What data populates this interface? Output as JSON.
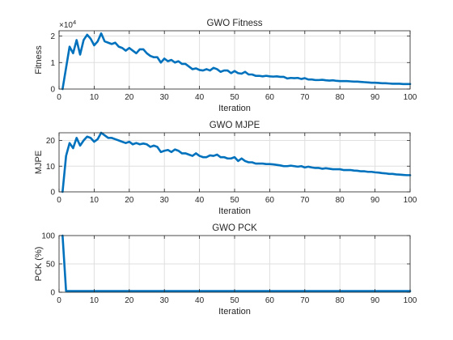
{
  "chart_data": [
    {
      "type": "line",
      "title": "GWO Fitness",
      "xlabel": "Iteration",
      "ylabel": "Fitness",
      "exponent_label": "×10",
      "exponent_power": "4",
      "xlim": [
        0,
        100
      ],
      "ylim": [
        0,
        22000
      ],
      "xticks": [
        0,
        10,
        20,
        30,
        40,
        50,
        60,
        70,
        80,
        90,
        100
      ],
      "yticks": [
        0,
        10000,
        20000
      ],
      "ytick_labels": [
        "0",
        "1",
        "2"
      ],
      "grid": true,
      "color": "#0072BD",
      "x": [
        1,
        2,
        3,
        4,
        5,
        6,
        7,
        8,
        9,
        10,
        11,
        12,
        13,
        14,
        15,
        16,
        17,
        18,
        19,
        20,
        21,
        22,
        23,
        24,
        25,
        26,
        27,
        28,
        29,
        30,
        31,
        32,
        33,
        34,
        35,
        36,
        37,
        38,
        39,
        40,
        41,
        42,
        43,
        44,
        45,
        46,
        47,
        48,
        49,
        50,
        51,
        52,
        53,
        54,
        55,
        56,
        57,
        58,
        59,
        60,
        61,
        62,
        63,
        64,
        65,
        66,
        67,
        68,
        69,
        70,
        71,
        72,
        73,
        74,
        75,
        76,
        77,
        78,
        79,
        80,
        81,
        82,
        83,
        84,
        85,
        86,
        87,
        88,
        89,
        90,
        91,
        92,
        93,
        94,
        95,
        96,
        97,
        98,
        99,
        100
      ],
      "values": [
        0,
        8000,
        16000,
        13500,
        18500,
        13000,
        18500,
        20500,
        19000,
        16500,
        18000,
        21000,
        18000,
        17500,
        17000,
        17500,
        16000,
        15500,
        14500,
        15500,
        14500,
        13500,
        15000,
        15000,
        13500,
        12500,
        12000,
        12000,
        10000,
        11500,
        10500,
        11000,
        10000,
        10500,
        9500,
        9500,
        8500,
        7500,
        7800,
        7200,
        7000,
        7500,
        7000,
        8000,
        7500,
        6500,
        7000,
        7000,
        6000,
        6800,
        6000,
        5800,
        6500,
        5500,
        5500,
        5000,
        5000,
        4800,
        5000,
        4800,
        4700,
        4800,
        4600,
        4600,
        4000,
        4200,
        4100,
        4200,
        3800,
        4100,
        3600,
        3600,
        3400,
        3400,
        3500,
        3300,
        3200,
        3300,
        3100,
        3000,
        3000,
        3000,
        2900,
        2800,
        2800,
        2700,
        2600,
        2500,
        2400,
        2400,
        2300,
        2200,
        2200,
        2100,
        2000,
        2000,
        2000,
        1900,
        1900,
        1900
      ]
    },
    {
      "type": "line",
      "title": "GWO MJPE",
      "xlabel": "Iteration",
      "ylabel": "MJPE",
      "xlim": [
        0,
        100
      ],
      "ylim": [
        0,
        23
      ],
      "xticks": [
        0,
        10,
        20,
        30,
        40,
        50,
        60,
        70,
        80,
        90,
        100
      ],
      "yticks": [
        0,
        10,
        20
      ],
      "ytick_labels": [
        "0",
        "10",
        "20"
      ],
      "grid": true,
      "color": "#0072BD",
      "x": [
        1,
        2,
        3,
        4,
        5,
        6,
        7,
        8,
        9,
        10,
        11,
        12,
        13,
        14,
        15,
        16,
        17,
        18,
        19,
        20,
        21,
        22,
        23,
        24,
        25,
        26,
        27,
        28,
        29,
        30,
        31,
        32,
        33,
        34,
        35,
        36,
        37,
        38,
        39,
        40,
        41,
        42,
        43,
        44,
        45,
        46,
        47,
        48,
        49,
        50,
        51,
        52,
        53,
        54,
        55,
        56,
        57,
        58,
        59,
        60,
        61,
        62,
        63,
        64,
        65,
        66,
        67,
        68,
        69,
        70,
        71,
        72,
        73,
        74,
        75,
        76,
        77,
        78,
        79,
        80,
        81,
        82,
        83,
        84,
        85,
        86,
        87,
        88,
        89,
        90,
        91,
        92,
        93,
        94,
        95,
        96,
        97,
        98,
        99,
        100
      ],
      "values": [
        0,
        14,
        19,
        17,
        21,
        18,
        20,
        21.5,
        21,
        19.5,
        20.5,
        23,
        22,
        21,
        21,
        20.5,
        20,
        19.5,
        19,
        19.5,
        18.5,
        19,
        18.5,
        18.8,
        18.5,
        17.5,
        18,
        17.5,
        15.5,
        16,
        16.3,
        15.5,
        16.5,
        16,
        15,
        15,
        14.5,
        14,
        15,
        14,
        13.5,
        13.5,
        14.2,
        14,
        14.5,
        13.5,
        13.5,
        13,
        13,
        13.5,
        12,
        13,
        12,
        11.5,
        11.5,
        11,
        11,
        11,
        10.8,
        10.8,
        10.7,
        10.5,
        10.3,
        10,
        10,
        10.2,
        10,
        9.8,
        10,
        9.5,
        9.8,
        9.5,
        9.3,
        9.3,
        9,
        9.2,
        9,
        8.8,
        8.8,
        8.8,
        8.5,
        8.5,
        8.5,
        8.3,
        8.2,
        8,
        8,
        7.8,
        7.8,
        7.6,
        7.5,
        7.3,
        7.2,
        7,
        7,
        6.8,
        6.7,
        6.6,
        6.5,
        6.5
      ]
    },
    {
      "type": "line",
      "title": "GWO PCK",
      "xlabel": "Iteration",
      "ylabel": "PCK (%)",
      "xlim": [
        0,
        100
      ],
      "ylim": [
        0,
        100
      ],
      "xticks": [
        0,
        10,
        20,
        30,
        40,
        50,
        60,
        70,
        80,
        90,
        100
      ],
      "yticks": [
        0,
        50,
        100
      ],
      "ytick_labels": [
        "0",
        "50",
        "100"
      ],
      "grid": true,
      "color": "#0072BD",
      "x": [
        1,
        2,
        3,
        4,
        5,
        10,
        20,
        30,
        40,
        50,
        60,
        70,
        80,
        90,
        100
      ],
      "values": [
        100,
        2,
        2,
        2,
        2,
        2,
        2,
        2,
        2,
        2,
        2,
        2,
        2,
        2,
        2
      ]
    }
  ]
}
